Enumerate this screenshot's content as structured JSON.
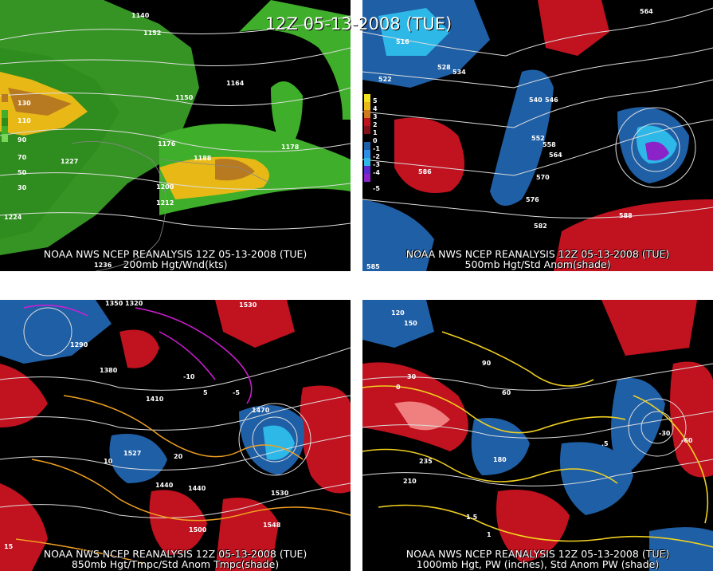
{
  "title": "12Z 05-13-2008 (TUE)",
  "colors": {
    "wind_green": "#3fae2a",
    "wind_yellow": "#e8b916",
    "anom_red": "#c1121f",
    "anom_blue": "#1f5fa6",
    "anom_cyan": "#2db8e8",
    "anom_purple": "#8a23c8",
    "yellow_contour": "#f0d020",
    "magenta_contour": "#d21cd6"
  },
  "panels": [
    {
      "header": "NOAA NWS NCEP REANALYSIS 12Z 05-13-2008 (TUE)",
      "subtitle": "200mb Hgt/Wnd(kts)",
      "legend": [
        "130",
        "110",
        "90",
        "70",
        "50",
        "30"
      ],
      "labels": [
        "1140",
        "1152",
        "1164",
        "1176",
        "1188",
        "1200",
        "1212",
        "1224",
        "1236",
        "1227",
        "1178",
        "1150"
      ]
    },
    {
      "header": "NOAA NWS NCEP REANALYSIS 12Z 05-13-2008 (TUE)",
      "subtitle": "500mb Hgt/Std Anom(shade)",
      "legend": [
        "5",
        "4",
        "3",
        "2",
        "1",
        "0",
        "-1",
        "-2",
        "-3",
        "-4",
        "-5"
      ],
      "labels": [
        "516",
        "522",
        "528",
        "534",
        "540",
        "546",
        "552",
        "558",
        "564",
        "570",
        "576",
        "582",
        "588",
        "586",
        "585",
        "564"
      ]
    },
    {
      "header": "NOAA NWS NCEP REANALYSIS 12Z 05-13-2008 (TUE)",
      "subtitle": "850mb Hgt/Tmpc/Std Anom Tmpc(shade)",
      "labels": [
        "1350",
        "1320",
        "1290",
        "1380",
        "1410",
        "1440",
        "1470",
        "1500",
        "1530",
        "1527",
        "1548",
        "1440",
        "1530",
        "10",
        "15",
        "20",
        "5",
        "-5",
        "-10"
      ]
    },
    {
      "header": "NOAA NWS NCEP REANALYSIS 12Z 05-13-2008 (TUE)",
      "subtitle": "1000mb Hgt, PW (inches), Std Anom PW (shade)",
      "labels": [
        "150",
        "120",
        "90",
        "60",
        "30",
        "0",
        "180",
        "210",
        "235",
        "1.5",
        "1",
        ".5",
        "-30",
        "-60"
      ]
    }
  ]
}
